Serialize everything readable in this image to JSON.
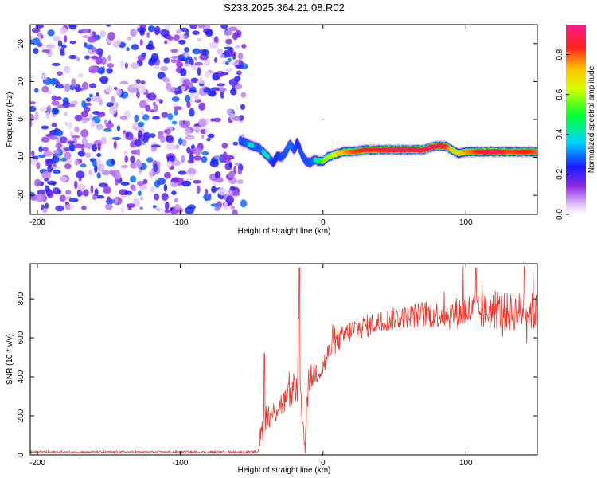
{
  "title": "S233.2025.364.21.08.R02",
  "colors": {
    "snr_line": "#e8392f",
    "axis": "#000000",
    "background": "#ffffff"
  },
  "chart_data": [
    {
      "type": "heatmap",
      "name": "spectrogram",
      "xlabel": "Height of straight line (km)",
      "ylabel": "Frequency (Hz)",
      "xlim": [
        -205,
        150
      ],
      "ylim": [
        -25,
        25
      ],
      "xticks": [
        "-200",
        "-100",
        "0",
        "100"
      ],
      "yticks": [
        "-20",
        "-10",
        "0",
        "10",
        "20"
      ],
      "noise_region_x": [
        -205,
        -55
      ],
      "noise_amplitude_range": [
        0.0,
        0.3
      ],
      "signal_ridge": {
        "x": [
          -58,
          -55,
          -52,
          -49,
          -45,
          -42,
          -38,
          -35,
          -32,
          -29,
          -26,
          -23,
          -20,
          -18,
          -15,
          -12,
          -9,
          -6,
          -3,
          0,
          3,
          6,
          10,
          15,
          20,
          30,
          40,
          50,
          60,
          70,
          78,
          82,
          86,
          90,
          95,
          100,
          110,
          120,
          130,
          140,
          150
        ],
        "freq": [
          -5.5,
          -6,
          -6.5,
          -7,
          -7.5,
          -8.5,
          -10,
          -11.5,
          -9.5,
          -10,
          -8.5,
          -6.5,
          -8,
          -6,
          -9,
          -11,
          -11.5,
          -10.5,
          -11,
          -11,
          -10,
          -9.5,
          -9,
          -8.5,
          -8.5,
          -8,
          -8,
          -8,
          -8,
          -8,
          -7,
          -7,
          -7,
          -8,
          -9,
          -8.5,
          -8.5,
          -8.5,
          -8.5,
          -8.5,
          -8.5
        ],
        "amplitude": [
          0.35,
          0.35,
          0.4,
          0.4,
          0.35,
          0.4,
          0.4,
          0.3,
          0.3,
          0.35,
          0.35,
          0.4,
          0.35,
          0.3,
          0.35,
          0.35,
          0.35,
          0.4,
          0.45,
          0.55,
          0.6,
          0.6,
          0.7,
          0.75,
          0.8,
          0.85,
          0.85,
          0.9,
          0.9,
          0.9,
          0.9,
          0.88,
          0.85,
          0.7,
          0.7,
          0.75,
          0.85,
          0.9,
          0.8,
          0.85,
          0.8
        ]
      },
      "colorbar": {
        "label": "Normalized spectral amplitude",
        "range": [
          0.0,
          0.95
        ],
        "ticks": [
          "0.0",
          "0.2",
          "0.4",
          "0.6",
          "0.8"
        ]
      }
    },
    {
      "type": "line",
      "name": "snr",
      "xlabel": "Height of straight line (km)",
      "ylabel": "SNR (10 * v/v)",
      "xlim": [
        -205,
        150
      ],
      "ylim": [
        0,
        980
      ],
      "xticks": [
        "-200",
        "-100",
        "0",
        "100"
      ],
      "yticks": [
        "0",
        "200",
        "400",
        "600",
        "800"
      ],
      "series": [
        {
          "name": "SNR",
          "profile_x": [
            -205,
            -46,
            -44,
            -42,
            -40,
            -37,
            -34,
            -31,
            -28,
            -25,
            -22,
            -20,
            -18,
            -17,
            -15,
            -13,
            -10,
            -5,
            0,
            5,
            10,
            15,
            20,
            30,
            40,
            50,
            60,
            70,
            80,
            90,
            100,
            110,
            120,
            130,
            140,
            150
          ],
          "profile_y": [
            15,
            15,
            80,
            150,
            200,
            180,
            220,
            260,
            260,
            300,
            320,
            340,
            320,
            420,
            200,
            100,
            380,
            430,
            450,
            540,
            580,
            610,
            640,
            660,
            680,
            700,
            710,
            720,
            720,
            720,
            740,
            730,
            740,
            730,
            740,
            730
          ],
          "noise_amplitude": [
            6,
            6,
            60,
            70,
            70,
            70,
            70,
            70,
            70,
            70,
            70,
            70,
            70,
            70,
            70,
            70,
            70,
            70,
            70,
            60,
            60,
            60,
            60,
            60,
            60,
            60,
            60,
            70,
            70,
            80,
            90,
            90,
            100,
            100,
            100,
            100
          ],
          "spikes": [
            {
              "x": -16.5,
              "y": 960
            },
            {
              "x": -17.2,
              "y": 700
            },
            {
              "x": -12.5,
              "y": 10
            },
            {
              "x": -41.0,
              "y": 520
            },
            {
              "x": 98.0,
              "y": 970
            },
            {
              "x": 107.0,
              "y": 960
            },
            {
              "x": 141.0,
              "y": 965
            },
            {
              "x": 147.0,
              "y": 930
            }
          ]
        }
      ]
    }
  ]
}
